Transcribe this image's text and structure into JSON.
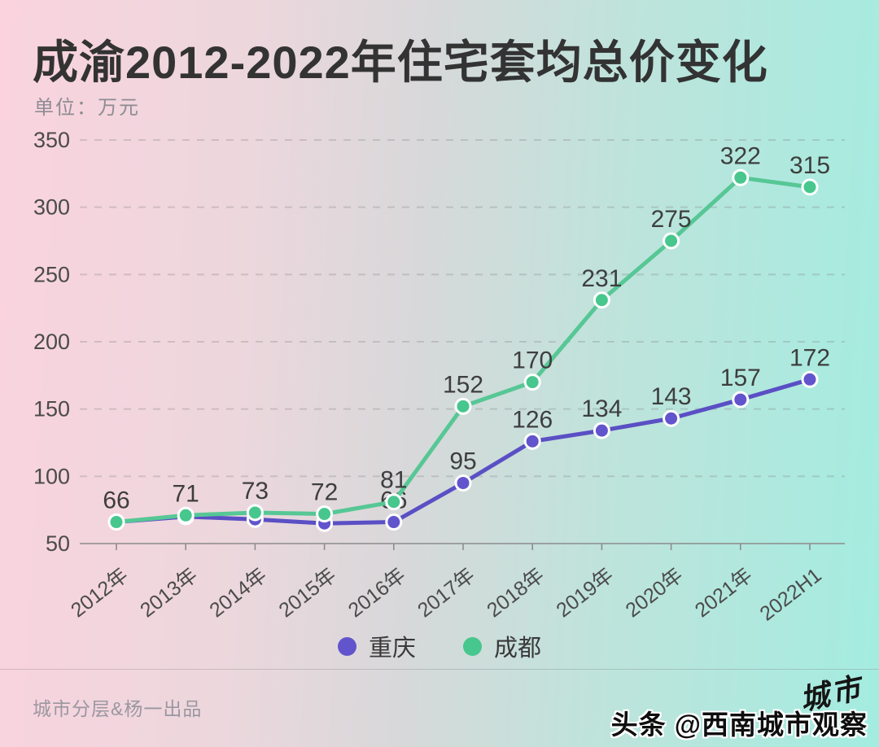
{
  "title": "成渝2012-2022年住宅套均总价变化",
  "subtitle": "单位：万元",
  "chart_data": {
    "type": "line",
    "categories": [
      "2012年",
      "2013年",
      "2014年",
      "2015年",
      "2016年",
      "2017年",
      "2018年",
      "2019年",
      "2020年",
      "2021年",
      "2022H1"
    ],
    "series": [
      {
        "name": "重庆",
        "slug": "chongqing",
        "line_color": "#5a4fc4",
        "dot_color": "#6254cc",
        "values": [
          66,
          70,
          68,
          65,
          66,
          95,
          126,
          134,
          143,
          157,
          172
        ],
        "labels": [
          null,
          null,
          null,
          null,
          "66",
          "95",
          "126",
          "134",
          "143",
          "157",
          "172"
        ]
      },
      {
        "name": "成都",
        "slug": "chengdu",
        "line_color": "#56c795",
        "dot_color": "#47c78d",
        "values": [
          66,
          71,
          73,
          72,
          81,
          152,
          170,
          231,
          275,
          322,
          315
        ],
        "labels": [
          "66",
          "71",
          "73",
          "72",
          "81",
          "152",
          "170",
          "231",
          "275",
          "322",
          "315"
        ]
      }
    ],
    "yticks": [
      50,
      100,
      150,
      200,
      250,
      300,
      350
    ],
    "ylim": [
      50,
      350
    ],
    "ylabel_unit": "万元",
    "grid": "horizontal-dashed",
    "legend_position": "bottom",
    "x_label_rotation": -38
  },
  "footer": {
    "credit": "城市分层&杨一出品",
    "logo": "城市",
    "watermark": "头条 @西南城市观察"
  },
  "colors": {
    "background_left": "#fad3de",
    "background_right": "#a4ece0",
    "title_text": "#333333",
    "subtitle_text": "#8e8c92",
    "axis_line": "#8c8c8c",
    "tick_label": "#4b4b4b",
    "data_label": "#3e3e3e",
    "gridline": "#7a7a7a",
    "chongqing_purple": "#5a4fc4",
    "chengdu_green": "#56c795"
  }
}
